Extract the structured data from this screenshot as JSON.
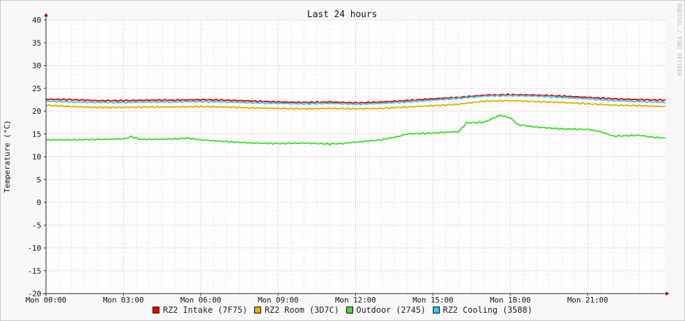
{
  "chart_data": {
    "type": "line",
    "title": "Last 24 hours",
    "ylabel": "Temperature (°C)",
    "watermark": "RRDTOOL / TOBI OETIKER",
    "ylim": [
      -20,
      40
    ],
    "yticks": [
      40,
      35,
      30,
      25,
      20,
      15,
      10,
      5,
      0,
      -5,
      -10,
      -15,
      -20
    ],
    "xticks": [
      "Mon 00:00",
      "Mon 03:00",
      "Mon 06:00",
      "Mon 09:00",
      "Mon 12:00",
      "Mon 15:00",
      "Mon 18:00",
      "Mon 21:00"
    ],
    "xlim_hours": [
      0,
      24
    ],
    "grid": true,
    "legend_position": "bottom",
    "series": [
      {
        "name": "RZ2 Intake (7F75)",
        "color": "#ee0000",
        "points": [
          [
            0,
            22.6
          ],
          [
            1,
            22.5
          ],
          [
            2,
            22.3
          ],
          [
            3,
            22.3
          ],
          [
            4,
            22.4
          ],
          [
            5,
            22.4
          ],
          [
            6,
            22.5
          ],
          [
            7,
            22.4
          ],
          [
            8,
            22.2
          ],
          [
            9,
            22.0
          ],
          [
            10,
            21.9
          ],
          [
            11,
            22.0
          ],
          [
            12,
            21.8
          ],
          [
            13,
            22.0
          ],
          [
            14,
            22.3
          ],
          [
            15,
            22.7
          ],
          [
            16,
            23.0
          ],
          [
            17,
            23.5
          ],
          [
            18,
            23.6
          ],
          [
            19,
            23.5
          ],
          [
            20,
            23.3
          ],
          [
            21,
            23.0
          ],
          [
            22,
            22.7
          ],
          [
            23,
            22.5
          ],
          [
            24,
            22.4
          ]
        ]
      },
      {
        "name": "RZ2 Room (3D7C)",
        "color": "#e8b000",
        "points": [
          [
            0,
            21.3
          ],
          [
            1,
            21.0
          ],
          [
            2,
            20.8
          ],
          [
            3,
            20.8
          ],
          [
            4,
            20.9
          ],
          [
            5,
            20.9
          ],
          [
            6,
            21.0
          ],
          [
            7,
            20.9
          ],
          [
            8,
            20.7
          ],
          [
            9,
            20.6
          ],
          [
            10,
            20.5
          ],
          [
            11,
            20.6
          ],
          [
            12,
            20.5
          ],
          [
            13,
            20.6
          ],
          [
            14,
            20.9
          ],
          [
            15,
            21.2
          ],
          [
            16,
            21.5
          ],
          [
            17,
            22.2
          ],
          [
            18,
            22.3
          ],
          [
            19,
            22.1
          ],
          [
            20,
            21.9
          ],
          [
            21,
            21.6
          ],
          [
            22,
            21.3
          ],
          [
            23,
            21.2
          ],
          [
            24,
            21.0
          ]
        ]
      },
      {
        "name": "Outdoor (2745)",
        "color": "#44dd33",
        "points": [
          [
            0,
            13.7
          ],
          [
            1,
            13.7
          ],
          [
            2,
            13.8
          ],
          [
            3,
            13.9
          ],
          [
            3.3,
            14.4
          ],
          [
            3.7,
            13.8
          ],
          [
            5,
            13.9
          ],
          [
            5.5,
            14.1
          ],
          [
            6,
            13.7
          ],
          [
            7,
            13.3
          ],
          [
            8,
            13.0
          ],
          [
            9,
            12.9
          ],
          [
            10,
            13.0
          ],
          [
            11,
            12.8
          ],
          [
            11.5,
            12.9
          ],
          [
            12,
            13.2
          ],
          [
            13,
            13.7
          ],
          [
            13.7,
            14.5
          ],
          [
            14,
            15.0
          ],
          [
            15,
            15.2
          ],
          [
            16,
            15.5
          ],
          [
            16.3,
            17.4
          ],
          [
            17,
            17.6
          ],
          [
            17.6,
            19.1
          ],
          [
            18,
            18.5
          ],
          [
            18.3,
            17.0
          ],
          [
            19,
            16.5
          ],
          [
            20,
            16.1
          ],
          [
            21,
            16.0
          ],
          [
            21.5,
            15.5
          ],
          [
            22,
            14.5
          ],
          [
            23,
            14.7
          ],
          [
            23.5,
            14.3
          ],
          [
            24,
            14.1
          ]
        ]
      },
      {
        "name": "RZ2 Cooling (3588)",
        "color": "#33ccee",
        "points": [
          [
            0,
            22.2
          ],
          [
            1,
            22.0
          ],
          [
            2,
            21.9
          ],
          [
            3,
            21.9
          ],
          [
            4,
            22.0
          ],
          [
            5,
            22.0
          ],
          [
            6,
            22.1
          ],
          [
            7,
            22.0
          ],
          [
            8,
            21.8
          ],
          [
            9,
            21.7
          ],
          [
            10,
            21.6
          ],
          [
            11,
            21.7
          ],
          [
            12,
            21.5
          ],
          [
            13,
            21.7
          ],
          [
            14,
            22.0
          ],
          [
            15,
            22.4
          ],
          [
            16,
            22.8
          ],
          [
            17,
            23.3
          ],
          [
            18,
            23.4
          ],
          [
            19,
            23.3
          ],
          [
            20,
            23.0
          ],
          [
            21,
            22.7
          ],
          [
            22,
            22.3
          ],
          [
            23,
            22.1
          ],
          [
            24,
            21.9
          ]
        ]
      }
    ]
  }
}
